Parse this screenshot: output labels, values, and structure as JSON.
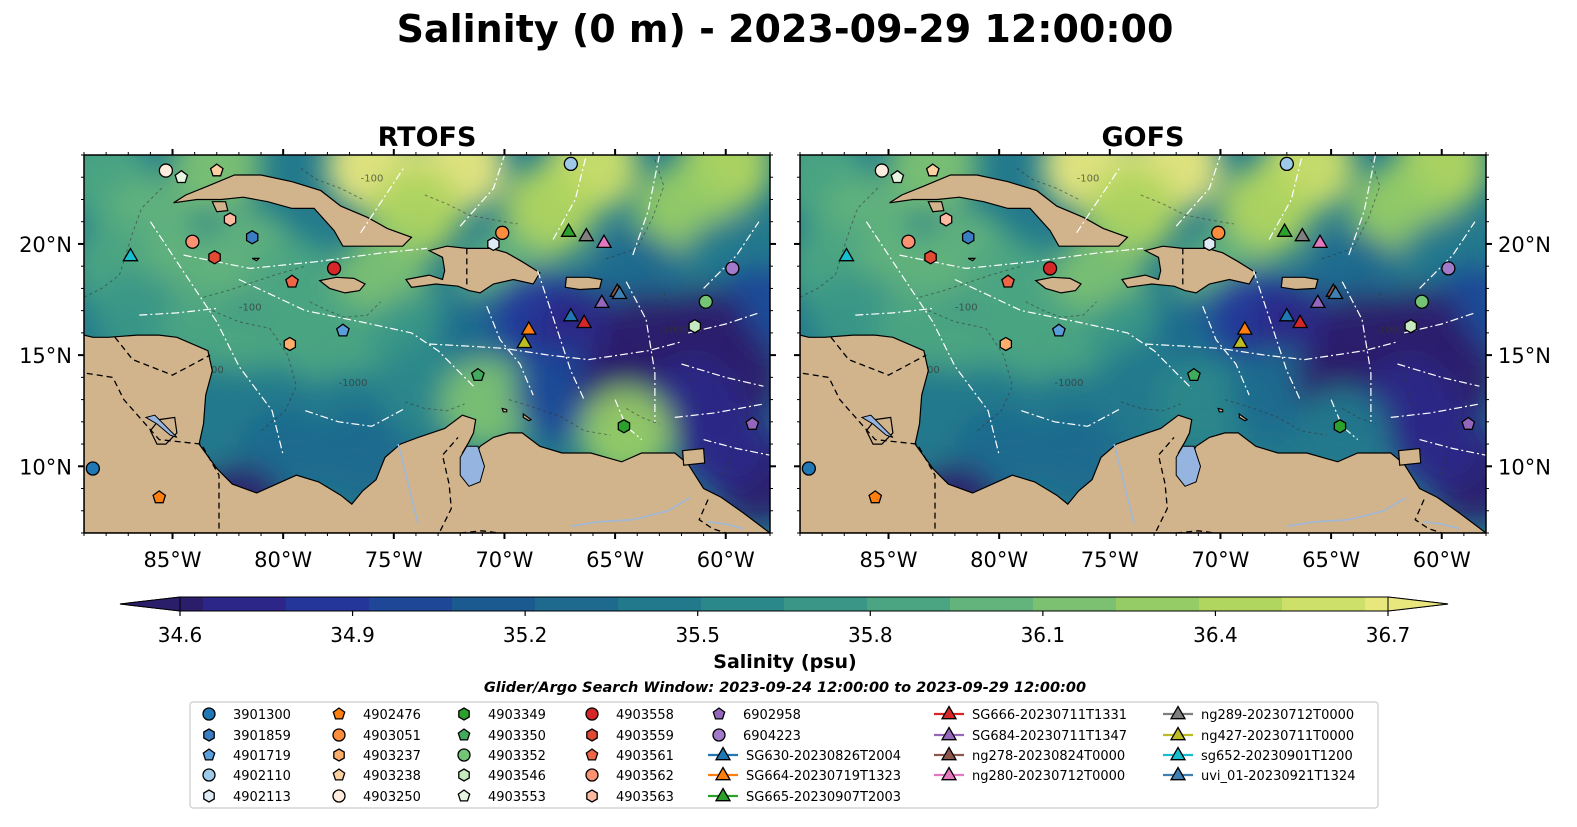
{
  "title": "Salinity (0 m) - 2023-09-29 12:00:00",
  "search_window": "Glider/Argo Search Window: 2023-09-24 12:00:00 to 2023-09-29 12:00:00",
  "colors": {
    "land": "#d2b48c",
    "lakes": "#95b5e0",
    "rivers": "#9fb8d8",
    "colormap": [
      "#2a1e6b",
      "#2b2687",
      "#24369a",
      "#1e4897",
      "#1b5a91",
      "#1d6a8e",
      "#22798c",
      "#2b888a",
      "#3a9787",
      "#4ca582",
      "#62b37c",
      "#7cc172",
      "#96cc66",
      "#b1d65f",
      "#cde06a",
      "#e8e77e"
    ]
  },
  "chart_data": {
    "type": "heatmap",
    "variable": "Salinity",
    "depth": "0 m",
    "time": "2023-09-29 12:00:00",
    "panels": [
      {
        "title": "RTOFS"
      },
      {
        "title": "GOFS"
      }
    ],
    "xlim": [
      -89,
      -58
    ],
    "ylim": [
      7,
      24
    ],
    "x_ticks": [
      -85,
      -80,
      -75,
      -70,
      -65,
      -60
    ],
    "x_tick_labels": [
      "85°W",
      "80°W",
      "75°W",
      "70°W",
      "65°W",
      "60°W"
    ],
    "y_ticks": [
      10,
      15,
      20
    ],
    "y_tick_labels": [
      "10°N",
      "15°N",
      "20°N"
    ],
    "colorbar": {
      "label": "Salinity (psu)",
      "min": 34.6,
      "max": 36.7,
      "ticks": [
        34.6,
        34.9,
        35.2,
        35.5,
        35.8,
        36.1,
        36.4,
        36.7
      ],
      "tick_labels": [
        "34.6",
        "34.9",
        "35.2",
        "35.5",
        "35.8",
        "36.1",
        "36.4",
        "36.7"
      ],
      "extend": "both"
    },
    "contour_labels": [
      "-100",
      "-1000"
    ],
    "observations": [
      {
        "name": "3901300",
        "platform": "argo",
        "marker": "circle",
        "color": "#1f77b4",
        "lon": -88.6,
        "lat": 9.9
      },
      {
        "name": "3901859",
        "platform": "argo",
        "marker": "hexagon",
        "color": "#3a7dc2",
        "lon": -81.4,
        "lat": 20.3
      },
      {
        "name": "4901719",
        "platform": "argo",
        "marker": "pentagon",
        "color": "#5a9ddb",
        "lon": -77.3,
        "lat": 16.1
      },
      {
        "name": "4902110",
        "platform": "argo",
        "marker": "circle",
        "color": "#9ecae9",
        "lon": -67.0,
        "lat": 23.6
      },
      {
        "name": "4902113",
        "platform": "argo",
        "marker": "hexagon",
        "color": "#deebf7",
        "lon": -70.5,
        "lat": 20.0
      },
      {
        "name": "4902476",
        "platform": "argo",
        "marker": "pentagon",
        "color": "#ff7f0e",
        "lon": -85.6,
        "lat": 8.6
      },
      {
        "name": "4903051",
        "platform": "argo",
        "marker": "circle",
        "color": "#fd8d3c",
        "lon": -70.1,
        "lat": 20.5
      },
      {
        "name": "4903237",
        "platform": "argo",
        "marker": "hexagon",
        "color": "#fdae6b",
        "lon": -79.7,
        "lat": 15.5
      },
      {
        "name": "4903238",
        "platform": "argo",
        "marker": "pentagon",
        "color": "#fdd0a2",
        "lon": -83.0,
        "lat": 23.3
      },
      {
        "name": "4903250",
        "platform": "argo",
        "marker": "circle",
        "color": "#feedde",
        "lon": -85.3,
        "lat": 23.3
      },
      {
        "name": "4903349",
        "platform": "argo",
        "marker": "hexagon",
        "color": "#2ca02c",
        "lon": -64.6,
        "lat": 11.8
      },
      {
        "name": "4903350",
        "platform": "argo",
        "marker": "pentagon",
        "color": "#41ab5d",
        "lon": -71.2,
        "lat": 14.1
      },
      {
        "name": "4903352",
        "platform": "argo",
        "marker": "circle",
        "color": "#74c476",
        "lon": -60.9,
        "lat": 17.4
      },
      {
        "name": "4903546",
        "platform": "argo",
        "marker": "hexagon",
        "color": "#c7e9c0",
        "lon": -61.4,
        "lat": 16.3
      },
      {
        "name": "4903553",
        "platform": "argo",
        "marker": "pentagon",
        "color": "#e5f5e0",
        "lon": -84.6,
        "lat": 23.0
      },
      {
        "name": "4903558",
        "platform": "argo",
        "marker": "circle",
        "color": "#d62728",
        "lon": -77.7,
        "lat": 18.9
      },
      {
        "name": "4903559",
        "platform": "argo",
        "marker": "hexagon",
        "color": "#e34a33",
        "lon": -83.1,
        "lat": 19.4
      },
      {
        "name": "4903561",
        "platform": "argo",
        "marker": "pentagon",
        "color": "#ef6548",
        "lon": -79.6,
        "lat": 18.3
      },
      {
        "name": "4903562",
        "platform": "argo",
        "marker": "circle",
        "color": "#fc9272",
        "lon": -84.1,
        "lat": 20.1
      },
      {
        "name": "4903563",
        "platform": "argo",
        "marker": "hexagon",
        "color": "#fcbba1",
        "lon": -82.4,
        "lat": 21.1
      },
      {
        "name": "6902958",
        "platform": "argo",
        "marker": "pentagon",
        "color": "#9467bd",
        "lon": -58.8,
        "lat": 11.9
      },
      {
        "name": "6904223",
        "platform": "argo",
        "marker": "circle",
        "color": "#a17ac9",
        "lon": -59.7,
        "lat": 18.9
      },
      {
        "name": "SG630-20230826T2004",
        "platform": "glider",
        "marker": "triangle",
        "color": "#1f77b4",
        "lon": -67.0,
        "lat": 16.8
      },
      {
        "name": "SG664-20230719T1323",
        "platform": "glider",
        "marker": "triangle",
        "color": "#ff7f0e",
        "lon": -68.9,
        "lat": 16.2
      },
      {
        "name": "SG665-20230907T2003",
        "platform": "glider",
        "marker": "triangle",
        "color": "#2ca02c",
        "lon": -67.1,
        "lat": 20.6
      },
      {
        "name": "SG666-20230711T1331",
        "platform": "glider",
        "marker": "triangle",
        "color": "#d62728",
        "lon": -66.4,
        "lat": 16.5
      },
      {
        "name": "SG684-20230711T1347",
        "platform": "glider",
        "marker": "triangle",
        "color": "#9467bd",
        "lon": -65.6,
        "lat": 17.4
      },
      {
        "name": "ng278-20230824T0000",
        "platform": "glider",
        "marker": "triangle",
        "color": "#8c564b",
        "lon": -64.9,
        "lat": 17.9
      },
      {
        "name": "ng280-20230712T0000",
        "platform": "glider",
        "marker": "triangle",
        "color": "#e377c2",
        "lon": -65.5,
        "lat": 20.1
      },
      {
        "name": "ng289-20230712T0000",
        "platform": "glider",
        "marker": "triangle",
        "color": "#7f7f7f",
        "lon": -66.3,
        "lat": 20.4
      },
      {
        "name": "ng427-20230711T0000",
        "platform": "glider",
        "marker": "triangle",
        "color": "#bcbd22",
        "lon": -69.1,
        "lat": 15.6
      },
      {
        "name": "sg652-20230901T1200",
        "platform": "glider",
        "marker": "triangle",
        "color": "#17becf",
        "lon": -86.9,
        "lat": 19.5
      },
      {
        "name": "uvi_01-20230921T1324",
        "platform": "glider",
        "marker": "triangle",
        "color": "#3f7fb2",
        "lon": -64.8,
        "lat": 17.8
      }
    ]
  }
}
